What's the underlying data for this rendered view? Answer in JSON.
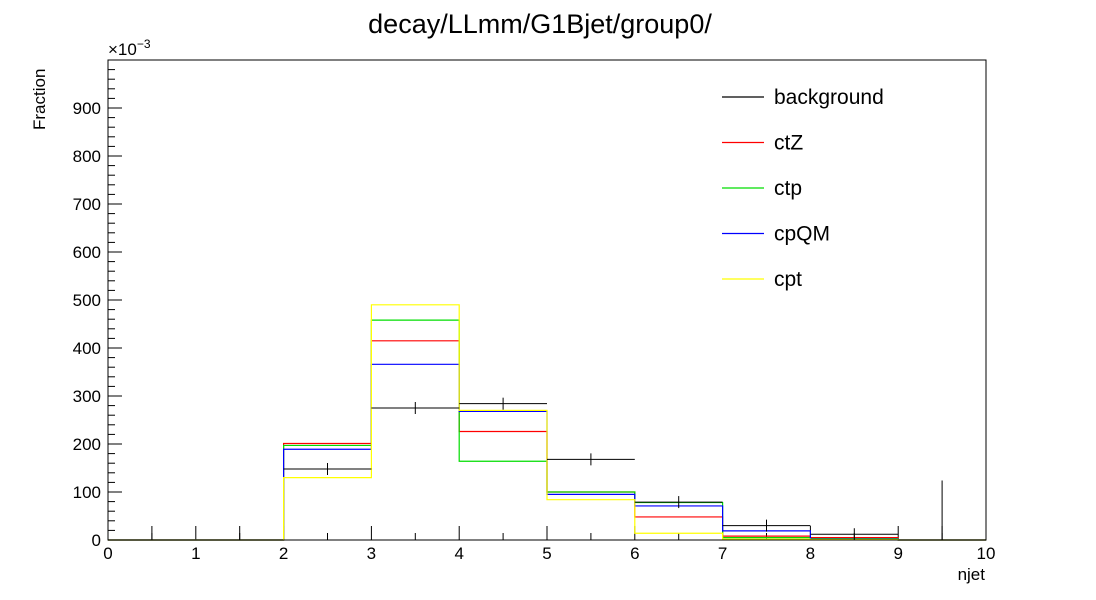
{
  "chart_data": {
    "type": "histogram",
    "title": "decay/LLmm/G1Bjet/group0/",
    "xlabel": "njet",
    "ylabel": "Fraction",
    "y_multiplier_label": "×10",
    "y_multiplier_exp": "−3",
    "xlim": [
      0,
      10
    ],
    "ylim": [
      0,
      1000
    ],
    "x_ticks": [
      "0",
      "1",
      "2",
      "3",
      "4",
      "5",
      "6",
      "7",
      "8",
      "9",
      "10"
    ],
    "y_ticks": [
      "0",
      "100",
      "200",
      "300",
      "400",
      "500",
      "600",
      "700",
      "800",
      "900"
    ],
    "bin_edges": [
      0,
      1,
      2,
      3,
      4,
      5,
      6,
      7,
      8,
      9,
      10
    ],
    "legend_position": "top-right",
    "series": [
      {
        "name": "background",
        "color": "#000000",
        "style": "error-bars",
        "values": [
          0,
          0,
          148,
          275,
          284,
          168,
          79,
          30,
          12,
          0
        ],
        "errors": [
          0,
          0,
          12,
          8,
          6,
          4,
          4,
          3,
          2,
          0
        ],
        "extra_error_bar": {
          "x": 9.5,
          "y": 0,
          "err": 124
        }
      },
      {
        "name": "ctZ",
        "color": "#ff0000",
        "style": "step",
        "values": [
          0,
          0,
          201,
          415,
          226,
          100,
          48,
          8,
          5,
          0
        ]
      },
      {
        "name": "ctp",
        "color": "#00dd00",
        "style": "step",
        "values": [
          0,
          0,
          197,
          458,
          164,
          100,
          78,
          5,
          3,
          0
        ]
      },
      {
        "name": "cpQM",
        "color": "#0000ff",
        "style": "step",
        "values": [
          0,
          0,
          189,
          366,
          268,
          95,
          71,
          19,
          2,
          0
        ]
      },
      {
        "name": "cpt",
        "color": "#ffff00",
        "style": "step",
        "values": [
          0,
          0,
          130,
          490,
          270,
          84,
          14,
          2,
          1,
          0
        ]
      }
    ]
  }
}
